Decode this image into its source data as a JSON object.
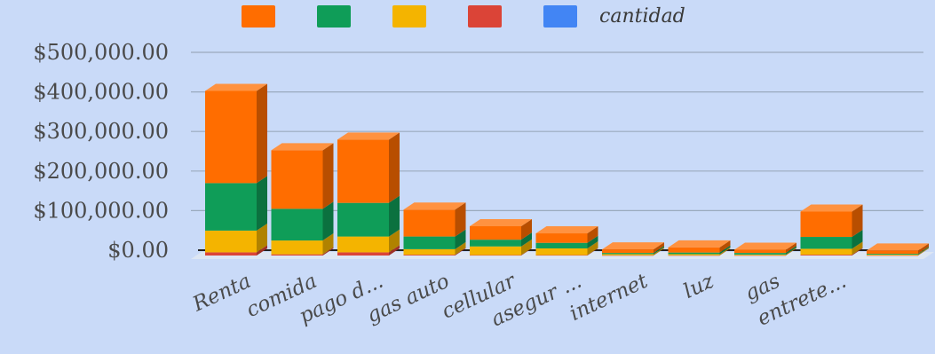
{
  "chart_data": {
    "type": "bar",
    "stacked": true,
    "three_d": true,
    "title": "",
    "xlabel": "",
    "ylabel": "",
    "ylim": [
      0,
      500000
    ],
    "yticks": [
      "$0.00",
      "$100,000.00",
      "$200,000.00",
      "$300,000.00",
      "$400,000.00",
      "$500,000.00"
    ],
    "ytick_values": [
      0,
      100000,
      200000,
      300000,
      400000,
      500000
    ],
    "grid": true,
    "legend_position": "top",
    "categories": [
      "Renta",
      "comida",
      "pago d...",
      "gas auto",
      "cellular",
      "asegur ...",
      "internet",
      "luz",
      "gas",
      "entrete...",
      ""
    ],
    "series": [
      {
        "name": "cantidad",
        "color": "#4285f4",
        "values": [
          0,
          0,
          0,
          0,
          0,
          0,
          0,
          0,
          0,
          0,
          0
        ]
      },
      {
        "name": "",
        "color": "#db4437",
        "values": [
          8000,
          3000,
          8000,
          2000,
          1000,
          1000,
          500,
          500,
          500,
          2000,
          500
        ]
      },
      {
        "name": "",
        "color": "#f4b400",
        "values": [
          55000,
          35000,
          40000,
          14000,
          22000,
          17000,
          3000,
          3000,
          2000,
          15000,
          2000
        ]
      },
      {
        "name": "",
        "color": "#0f9d58",
        "values": [
          120000,
          80000,
          85000,
          32000,
          17000,
          14000,
          3000,
          4000,
          4000,
          30000,
          2000
        ]
      },
      {
        "name": "",
        "color": "#ff6d00",
        "values": [
          233000,
          148000,
          160000,
          68000,
          34000,
          24000,
          9000,
          13000,
          8000,
          64000,
          8000
        ]
      }
    ]
  }
}
